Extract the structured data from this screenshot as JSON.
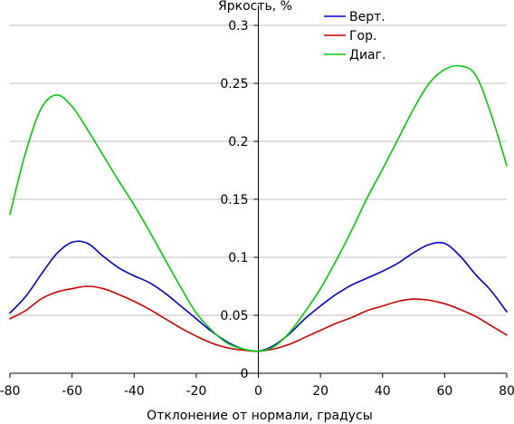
{
  "chart_data": {
    "type": "line",
    "title": "",
    "xlabel": "Отклонение от нормали, градусы",
    "ylabel": "Яркость, %",
    "xlim": [
      -80,
      80
    ],
    "ylim": [
      0,
      0.3
    ],
    "x_ticks": [
      -80,
      -60,
      -40,
      -20,
      0,
      20,
      40,
      60,
      80
    ],
    "x_tick_labels": [
      "-80",
      "-60",
      "-40",
      "-20",
      "0",
      "20",
      "40",
      "60",
      "80"
    ],
    "y_ticks": [
      0,
      0.05,
      0.1,
      0.15,
      0.2,
      0.25,
      0.3
    ],
    "y_tick_labels": [
      "0",
      "0.05",
      "0.1",
      "0.15",
      "0.2",
      "0.25",
      "0.3"
    ],
    "grid": "horizontal",
    "legend_position": "top-right",
    "x": [
      -80,
      -75,
      -70,
      -65,
      -60,
      -55,
      -50,
      -45,
      -40,
      -35,
      -30,
      -25,
      -20,
      -15,
      -10,
      -5,
      0,
      5,
      10,
      15,
      20,
      25,
      30,
      35,
      40,
      45,
      50,
      55,
      60,
      65,
      70,
      75,
      80
    ],
    "series": [
      {
        "name": "Верт.",
        "color": "#0000cc",
        "values": [
          0.052,
          0.066,
          0.085,
          0.103,
          0.113,
          0.112,
          0.101,
          0.091,
          0.084,
          0.078,
          0.069,
          0.058,
          0.047,
          0.036,
          0.027,
          0.021,
          0.019,
          0.024,
          0.034,
          0.047,
          0.058,
          0.068,
          0.076,
          0.082,
          0.088,
          0.095,
          0.104,
          0.111,
          0.112,
          0.101,
          0.085,
          0.071,
          0.053
        ]
      },
      {
        "name": "Гор.",
        "color": "#cc0000",
        "values": [
          0.047,
          0.054,
          0.064,
          0.07,
          0.073,
          0.075,
          0.073,
          0.068,
          0.062,
          0.055,
          0.047,
          0.039,
          0.032,
          0.026,
          0.022,
          0.02,
          0.019,
          0.021,
          0.025,
          0.031,
          0.037,
          0.043,
          0.048,
          0.054,
          0.058,
          0.062,
          0.064,
          0.063,
          0.06,
          0.055,
          0.049,
          0.041,
          0.033
        ]
      },
      {
        "name": "Диаг.",
        "color": "#00cc00",
        "values": [
          0.137,
          0.19,
          0.228,
          0.24,
          0.23,
          0.21,
          0.188,
          0.166,
          0.145,
          0.122,
          0.098,
          0.074,
          0.052,
          0.037,
          0.026,
          0.021,
          0.019,
          0.023,
          0.035,
          0.053,
          0.073,
          0.097,
          0.123,
          0.151,
          0.176,
          0.202,
          0.228,
          0.25,
          0.262,
          0.265,
          0.257,
          0.223,
          0.179
        ]
      }
    ]
  }
}
